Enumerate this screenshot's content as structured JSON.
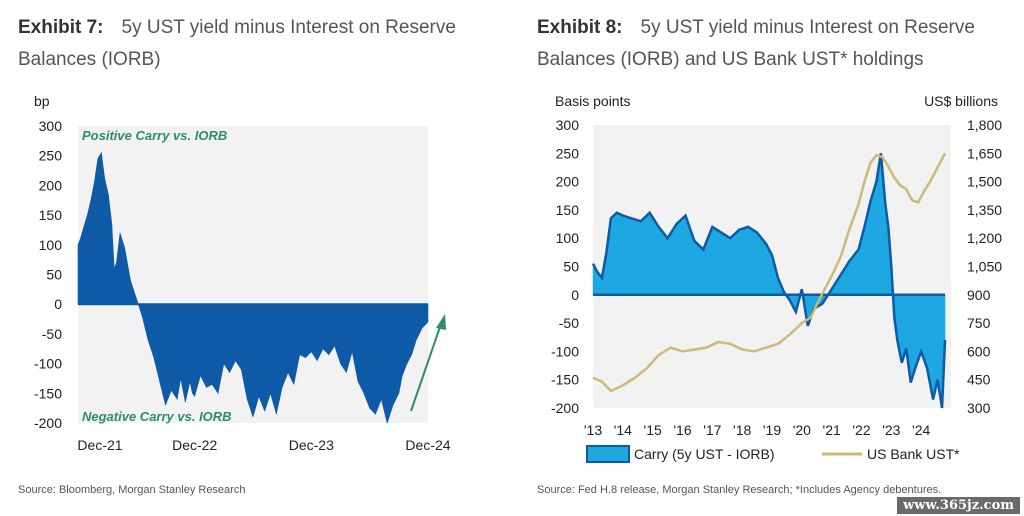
{
  "exhibit7": {
    "label": "Exhibit 7:",
    "title": "5y UST yield minus Interest on Reserve Balances (IORB)",
    "source": "Source: Bloomberg, Morgan Stanley Research"
  },
  "exhibit8": {
    "label": "Exhibit 8:",
    "title": "5y UST yield minus Interest on Reserve Balances (IORB) and US Bank UST* holdings",
    "source": "Source: Fed H.8 release, Morgan Stanley Research; *Includes Agency debentures."
  },
  "watermark": "www.365jz.com",
  "colors": {
    "carry_fill": "#0f5aa6",
    "carry_fill_light": "#1ea7e1",
    "holdings_line": "#cdb978",
    "annotation": "#2e8b6e"
  },
  "chart_data": [
    {
      "type": "area",
      "ylabel": "bp",
      "ylim": [
        -200,
        300
      ],
      "yticks": [
        300,
        250,
        200,
        150,
        100,
        50,
        0,
        -50,
        -100,
        -150,
        -200
      ],
      "xticks": [
        "Dec-21",
        "Dec-22",
        "Dec-23",
        "Dec-24"
      ],
      "annotations": [
        "Positive Carry vs. IORB",
        "Negative Carry vs. IORB"
      ],
      "series": [
        {
          "x": [
            0,
            0.02,
            0.05,
            0.08,
            0.11,
            0.14,
            0.17,
            0.2,
            0.23,
            0.26,
            0.29,
            0.31,
            0.33,
            0.36,
            0.4,
            0.45,
            0.5,
            0.55,
            0.6,
            0.65,
            0.7,
            0.75,
            0.8,
            0.85,
            0.88,
            0.92,
            0.96,
            0.98,
            1.0,
            1.05,
            1.1,
            1.15,
            1.2,
            1.25,
            1.3,
            1.35,
            1.4,
            1.45,
            1.5,
            1.55,
            1.6,
            1.65,
            1.7,
            1.75,
            1.8,
            1.85,
            1.9,
            1.95,
            2.0,
            2.05,
            2.1,
            2.15,
            2.2,
            2.25,
            2.3,
            2.35,
            2.4,
            2.45,
            2.5,
            2.55,
            2.6,
            2.65,
            2.7,
            2.75,
            2.78,
            2.82,
            2.86,
            2.9,
            2.95,
            3.0
          ],
          "values": [
            100,
            110,
            130,
            150,
            175,
            205,
            245,
            255,
            210,
            185,
            135,
            60,
            70,
            120,
            95,
            40,
            10,
            -20,
            -60,
            -90,
            -130,
            -170,
            -145,
            -160,
            -125,
            -165,
            -130,
            -150,
            -155,
            -120,
            -140,
            -135,
            -150,
            -100,
            -115,
            -95,
            -110,
            -160,
            -190,
            -155,
            -180,
            -150,
            -185,
            -140,
            -115,
            -135,
            -85,
            -90,
            -80,
            -95,
            -75,
            -85,
            -70,
            -100,
            -115,
            -80,
            -130,
            -150,
            -175,
            -185,
            -160,
            -200,
            -170,
            -150,
            -120,
            -100,
            -85,
            -60,
            -40,
            -30
          ]
        }
      ]
    },
    {
      "type": "area",
      "ylabel": "Basis points",
      "y2label": "US$ billions",
      "ylim": [
        -200,
        300
      ],
      "y2lim": [
        300,
        1800
      ],
      "yticks": [
        300,
        250,
        200,
        150,
        100,
        50,
        0,
        -50,
        -100,
        -150,
        -200
      ],
      "y2ticks": [
        "1,800",
        "1,650",
        "1,500",
        "1,350",
        "1,200",
        "1,050",
        "900",
        "750",
        "600",
        "450",
        "300"
      ],
      "xticks": [
        "'13",
        "'14",
        "'15",
        "'16",
        "'17",
        "'18",
        "'19",
        "'20",
        "'21",
        "'22",
        "'23",
        "'24"
      ],
      "series": [
        {
          "name": "Carry (5y UST - IORB)",
          "x": [
            2013.0,
            2013.15,
            2013.3,
            2013.45,
            2013.6,
            2013.8,
            2014.0,
            2014.3,
            2014.6,
            2014.9,
            2015.2,
            2015.5,
            2015.8,
            2016.1,
            2016.4,
            2016.7,
            2017.0,
            2017.3,
            2017.6,
            2017.9,
            2018.2,
            2018.5,
            2018.8,
            2019.0,
            2019.2,
            2019.4,
            2019.6,
            2019.8,
            2020.0,
            2020.2,
            2020.4,
            2020.7,
            2021.0,
            2021.3,
            2021.6,
            2021.9,
            2022.1,
            2022.3,
            2022.5,
            2022.65,
            2022.8,
            2022.9,
            2023.0,
            2023.1,
            2023.2,
            2023.35,
            2023.5,
            2023.65,
            2023.8,
            2024.0,
            2024.2,
            2024.4,
            2024.55,
            2024.7,
            2024.8
          ],
          "values": [
            55,
            40,
            30,
            75,
            135,
            145,
            140,
            135,
            130,
            145,
            120,
            100,
            125,
            140,
            95,
            80,
            120,
            110,
            100,
            115,
            120,
            110,
            90,
            70,
            30,
            5,
            -10,
            -30,
            10,
            -55,
            -25,
            -15,
            10,
            35,
            60,
            80,
            120,
            165,
            200,
            250,
            160,
            120,
            50,
            -40,
            -80,
            -120,
            -95,
            -155,
            -130,
            -100,
            -130,
            -185,
            -150,
            -200,
            -80
          ]
        },
        {
          "name": "US Bank UST*",
          "axis": "right",
          "x": [
            2013.0,
            2013.3,
            2013.6,
            2014.0,
            2014.4,
            2014.8,
            2015.2,
            2015.6,
            2016.0,
            2016.4,
            2016.8,
            2017.2,
            2017.6,
            2018.0,
            2018.4,
            2018.8,
            2019.2,
            2019.6,
            2020.0,
            2020.3,
            2020.6,
            2021.0,
            2021.3,
            2021.6,
            2021.9,
            2022.1,
            2022.3,
            2022.5,
            2022.7,
            2022.9,
            2023.1,
            2023.3,
            2023.5,
            2023.7,
            2023.9,
            2024.1,
            2024.3,
            2024.5,
            2024.7,
            2024.8
          ],
          "values": [
            460,
            440,
            390,
            420,
            460,
            510,
            580,
            620,
            600,
            610,
            620,
            650,
            640,
            610,
            600,
            620,
            640,
            690,
            750,
            780,
            880,
            1000,
            1100,
            1250,
            1380,
            1500,
            1600,
            1640,
            1630,
            1580,
            1520,
            1480,
            1460,
            1400,
            1390,
            1450,
            1500,
            1560,
            1620,
            1650
          ]
        }
      ]
    }
  ]
}
